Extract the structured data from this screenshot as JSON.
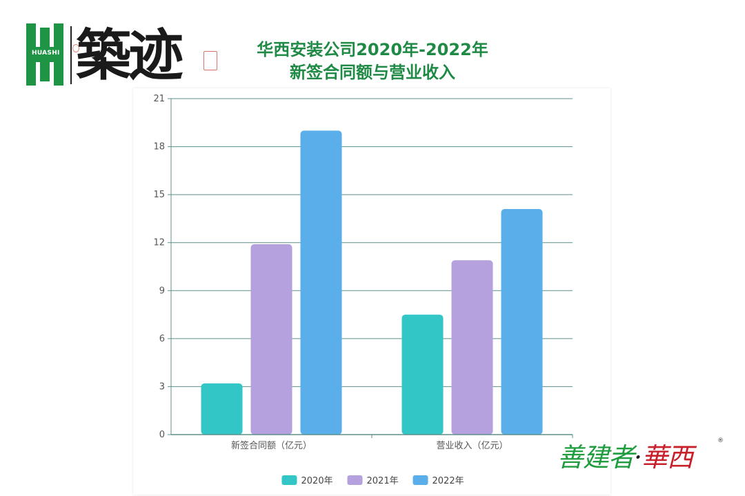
{
  "brand": {
    "logo_text": "HUASHI",
    "calligraphy": "築迹",
    "footer_green": "善建者",
    "footer_dot": "·",
    "footer_red": "華西",
    "footer_mark": "®"
  },
  "title_lines": [
    "华西安装公司2020年-2022年",
    "新签合同额与营业收入"
  ],
  "colors": {
    "title": "#1f8a45",
    "series_2020": "#33c6c6",
    "series_2021": "#b4a1dd",
    "series_2022": "#5aaeea",
    "grid": "#5d8f8a"
  },
  "chart_data": {
    "type": "bar",
    "categories": [
      "新签合同额（亿元）",
      "营业收入（亿元）"
    ],
    "series": [
      {
        "name": "2020年",
        "values": [
          3.2,
          7.5
        ]
      },
      {
        "name": "2021年",
        "values": [
          11.9,
          10.9
        ]
      },
      {
        "name": "2022年",
        "values": [
          19.0,
          14.1
        ]
      }
    ],
    "yticks": [
      "0",
      "3",
      "6",
      "9",
      "12",
      "15",
      "18",
      "21"
    ],
    "ylim": [
      0,
      21
    ],
    "grid": true,
    "legend": "bottom"
  }
}
